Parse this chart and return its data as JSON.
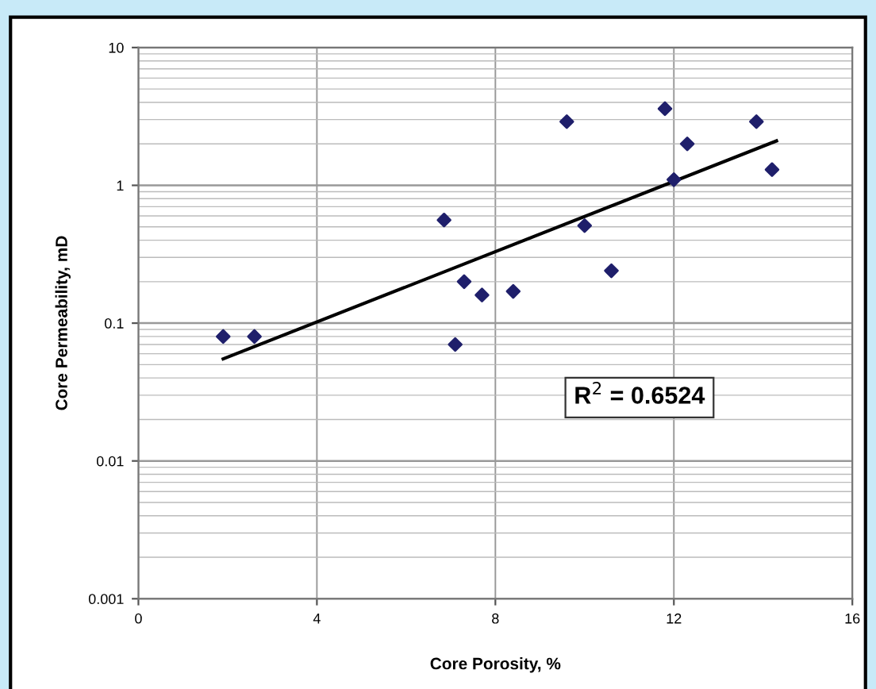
{
  "chart_data": {
    "type": "scatter",
    "xlabel": "Core Porosity, %",
    "ylabel": "Core Permeability, mD",
    "log": "y",
    "xlim": [
      0,
      16
    ],
    "xticks": [
      0,
      4,
      8,
      12,
      16
    ],
    "ylim": [
      0.001,
      10
    ],
    "yticks": [
      0.001,
      0.01,
      0.1,
      1,
      10
    ],
    "grid": true,
    "series": [
      {
        "marker": "diamond",
        "color": "#1f1f6b",
        "x": [
          1.9,
          2.6,
          6.85,
          7.1,
          7.3,
          7.7,
          8.4,
          9.6,
          10.0,
          10.6,
          11.8,
          12.0,
          12.3,
          13.85,
          14.2
        ],
        "values": [
          0.08,
          0.08,
          0.56,
          0.07,
          0.2,
          0.16,
          0.17,
          2.9,
          0.51,
          0.24,
          3.6,
          1.1,
          2.0,
          2.9,
          1.3
        ]
      },
      {
        "type": "line",
        "marker": "none",
        "color": "#000000",
        "x": [
          1.9,
          14.3
        ],
        "values": [
          0.055,
          2.1
        ]
      }
    ],
    "annotations": [
      "R$^{2}$ = 0.6524"
    ]
  }
}
